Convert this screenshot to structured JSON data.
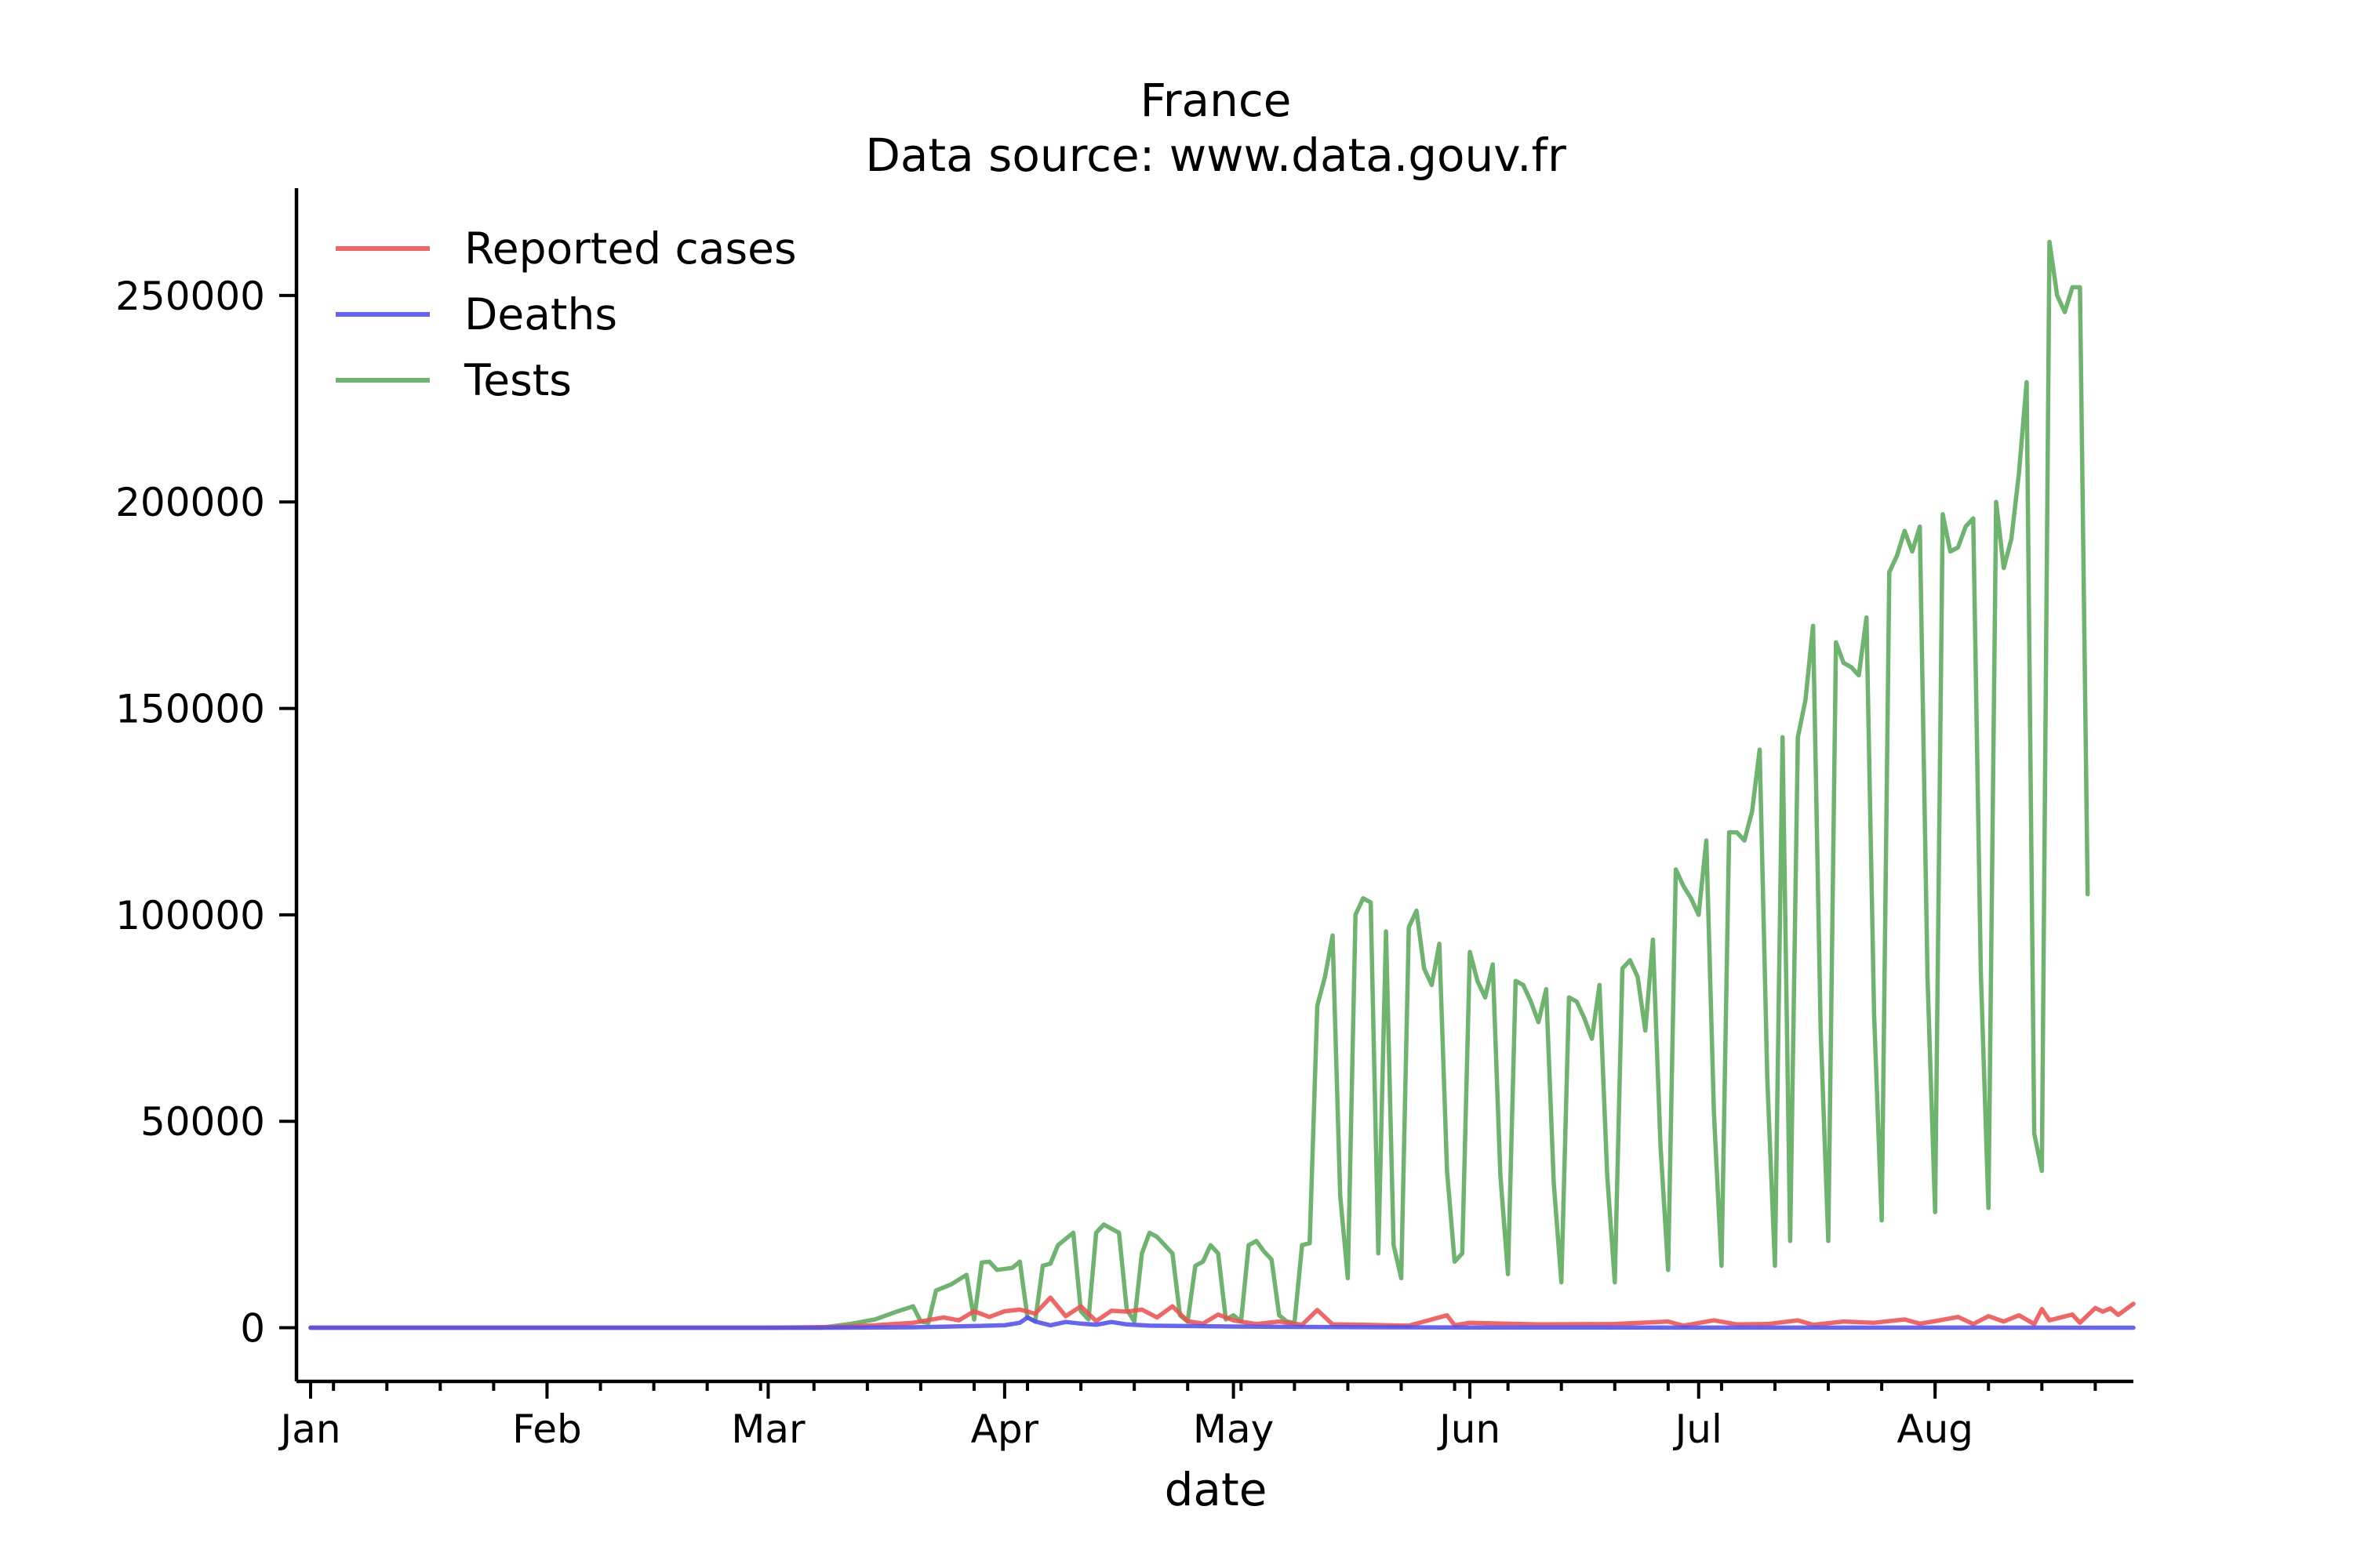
{
  "chart_data": {
    "type": "line",
    "title": "France",
    "subtitle": "Data source: www.data.gouv.fr",
    "xlabel": "date",
    "ylabel": "",
    "x_range": [
      "2020-01-01",
      "2020-08-27"
    ],
    "ylim": [
      -13000,
      276000
    ],
    "yticks": [
      0,
      50000,
      100000,
      150000,
      200000,
      250000
    ],
    "xticks": [
      {
        "date": "2020-01-01",
        "label": "Jan"
      },
      {
        "date": "2020-02-01",
        "label": "Feb"
      },
      {
        "date": "2020-03-01",
        "label": "Mar"
      },
      {
        "date": "2020-04-01",
        "label": "Apr"
      },
      {
        "date": "2020-05-01",
        "label": "May"
      },
      {
        "date": "2020-06-01",
        "label": "Jun"
      },
      {
        "date": "2020-07-01",
        "label": "Jul"
      },
      {
        "date": "2020-08-01",
        "label": "Aug"
      }
    ],
    "legend_position": "top-left",
    "grid": false,
    "series": [
      {
        "name": "Reported cases",
        "color": "#f05050",
        "points": [
          [
            "2020-01-01",
            0
          ],
          [
            "2020-03-01",
            0
          ],
          [
            "2020-03-10",
            200
          ],
          [
            "2020-03-15",
            600
          ],
          [
            "2020-03-20",
            1200
          ],
          [
            "2020-03-24",
            2500
          ],
          [
            "2020-03-26",
            1800
          ],
          [
            "2020-03-28",
            4000
          ],
          [
            "2020-03-30",
            2600
          ],
          [
            "2020-04-01",
            4000
          ],
          [
            "2020-04-03",
            4400
          ],
          [
            "2020-04-05",
            3400
          ],
          [
            "2020-04-07",
            7300
          ],
          [
            "2020-04-09",
            2800
          ],
          [
            "2020-04-11",
            5200
          ],
          [
            "2020-04-13",
            1600
          ],
          [
            "2020-04-15",
            4100
          ],
          [
            "2020-04-17",
            3900
          ],
          [
            "2020-04-19",
            4400
          ],
          [
            "2020-04-21",
            2500
          ],
          [
            "2020-04-23",
            5200
          ],
          [
            "2020-04-25",
            1600
          ],
          [
            "2020-04-27",
            1000
          ],
          [
            "2020-04-29",
            3200
          ],
          [
            "2020-05-01",
            1800
          ],
          [
            "2020-05-04",
            900
          ],
          [
            "2020-05-07",
            1500
          ],
          [
            "2020-05-10",
            700
          ],
          [
            "2020-05-12",
            4300
          ],
          [
            "2020-05-14",
            800
          ],
          [
            "2020-05-18",
            700
          ],
          [
            "2020-05-24",
            500
          ],
          [
            "2020-05-29",
            3000
          ],
          [
            "2020-05-30",
            600
          ],
          [
            "2020-06-01",
            1200
          ],
          [
            "2020-06-10",
            800
          ],
          [
            "2020-06-20",
            900
          ],
          [
            "2020-06-27",
            1500
          ],
          [
            "2020-06-29",
            500
          ],
          [
            "2020-07-03",
            1800
          ],
          [
            "2020-07-06",
            800
          ],
          [
            "2020-07-10",
            900
          ],
          [
            "2020-07-14",
            1800
          ],
          [
            "2020-07-16",
            700
          ],
          [
            "2020-07-20",
            1500
          ],
          [
            "2020-07-24",
            1200
          ],
          [
            "2020-07-28",
            2000
          ],
          [
            "2020-07-30",
            1000
          ],
          [
            "2020-08-01",
            1600
          ],
          [
            "2020-08-04",
            2600
          ],
          [
            "2020-08-06",
            900
          ],
          [
            "2020-08-08",
            2800
          ],
          [
            "2020-08-10",
            1500
          ],
          [
            "2020-08-12",
            3000
          ],
          [
            "2020-08-14",
            900
          ],
          [
            "2020-08-15",
            4500
          ],
          [
            "2020-08-16",
            1800
          ],
          [
            "2020-08-19",
            3200
          ],
          [
            "2020-08-20",
            1200
          ],
          [
            "2020-08-22",
            4800
          ],
          [
            "2020-08-23",
            3900
          ],
          [
            "2020-08-24",
            4700
          ],
          [
            "2020-08-25",
            3100
          ],
          [
            "2020-08-27",
            5800
          ]
        ]
      },
      {
        "name": "Deaths",
        "color": "#5050f0",
        "points": [
          [
            "2020-01-01",
            0
          ],
          [
            "2020-03-10",
            0
          ],
          [
            "2020-03-20",
            100
          ],
          [
            "2020-03-28",
            400
          ],
          [
            "2020-04-01",
            600
          ],
          [
            "2020-04-03",
            1200
          ],
          [
            "2020-04-04",
            2500
          ],
          [
            "2020-04-05",
            1500
          ],
          [
            "2020-04-07",
            600
          ],
          [
            "2020-04-09",
            1400
          ],
          [
            "2020-04-11",
            1000
          ],
          [
            "2020-04-13",
            700
          ],
          [
            "2020-04-15",
            1400
          ],
          [
            "2020-04-17",
            800
          ],
          [
            "2020-04-20",
            500
          ],
          [
            "2020-04-25",
            400
          ],
          [
            "2020-05-01",
            300
          ],
          [
            "2020-05-10",
            200
          ],
          [
            "2020-05-20",
            100
          ],
          [
            "2020-06-01",
            60
          ],
          [
            "2020-07-01",
            30
          ],
          [
            "2020-08-01",
            20
          ],
          [
            "2020-08-27",
            10
          ]
        ]
      },
      {
        "name": "Tests",
        "color": "#5aa85a",
        "points": [
          [
            "2020-01-01",
            0
          ],
          [
            "2020-03-08",
            0
          ],
          [
            "2020-03-12",
            1000
          ],
          [
            "2020-03-15",
            2000
          ],
          [
            "2020-03-18",
            4000
          ],
          [
            "2020-03-20",
            5200
          ],
          [
            "2020-03-21",
            1500
          ],
          [
            "2020-03-22",
            1200
          ],
          [
            "2020-03-23",
            9000
          ],
          [
            "2020-03-25",
            10500
          ],
          [
            "2020-03-27",
            12800
          ],
          [
            "2020-03-28",
            2000
          ],
          [
            "2020-03-29",
            15800
          ],
          [
            "2020-03-30",
            16000
          ],
          [
            "2020-03-31",
            14000
          ],
          [
            "2020-04-02",
            14500
          ],
          [
            "2020-04-03",
            16000
          ],
          [
            "2020-04-04",
            2500
          ],
          [
            "2020-04-05",
            1500
          ],
          [
            "2020-04-06",
            15000
          ],
          [
            "2020-04-07",
            15500
          ],
          [
            "2020-04-08",
            20000
          ],
          [
            "2020-04-10",
            23000
          ],
          [
            "2020-04-11",
            4000
          ],
          [
            "2020-04-12",
            2000
          ],
          [
            "2020-04-13",
            23000
          ],
          [
            "2020-04-14",
            25000
          ],
          [
            "2020-04-16",
            23000
          ],
          [
            "2020-04-17",
            4500
          ],
          [
            "2020-04-18",
            1500
          ],
          [
            "2020-04-19",
            18000
          ],
          [
            "2020-04-20",
            23000
          ],
          [
            "2020-04-21",
            22000
          ],
          [
            "2020-04-23",
            18000
          ],
          [
            "2020-04-24",
            3000
          ],
          [
            "2020-04-25",
            1500
          ],
          [
            "2020-04-26",
            15000
          ],
          [
            "2020-04-27",
            16000
          ],
          [
            "2020-04-28",
            20000
          ],
          [
            "2020-04-29",
            18000
          ],
          [
            "2020-04-30",
            2000
          ],
          [
            "2020-05-01",
            3000
          ],
          [
            "2020-05-02",
            1500
          ],
          [
            "2020-05-03",
            20000
          ],
          [
            "2020-05-04",
            21000
          ],
          [
            "2020-05-05",
            18500
          ],
          [
            "2020-05-06",
            16500
          ],
          [
            "2020-05-07",
            3000
          ],
          [
            "2020-05-08",
            1500
          ],
          [
            "2020-05-09",
            1200
          ],
          [
            "2020-05-10",
            20000
          ],
          [
            "2020-05-11",
            20500
          ],
          [
            "2020-05-12",
            78000
          ],
          [
            "2020-05-13",
            85000
          ],
          [
            "2020-05-14",
            95000
          ],
          [
            "2020-05-15",
            32000
          ],
          [
            "2020-05-16",
            12000
          ],
          [
            "2020-05-17",
            100000
          ],
          [
            "2020-05-18",
            104000
          ],
          [
            "2020-05-19",
            103000
          ],
          [
            "2020-05-20",
            18000
          ],
          [
            "2020-05-21",
            96000
          ],
          [
            "2020-05-22",
            20000
          ],
          [
            "2020-05-23",
            12000
          ],
          [
            "2020-05-24",
            97000
          ],
          [
            "2020-05-25",
            101000
          ],
          [
            "2020-05-26",
            87000
          ],
          [
            "2020-05-27",
            83000
          ],
          [
            "2020-05-28",
            93000
          ],
          [
            "2020-05-29",
            38000
          ],
          [
            "2020-05-30",
            16000
          ],
          [
            "2020-05-31",
            18000
          ],
          [
            "2020-06-01",
            91000
          ],
          [
            "2020-06-02",
            84000
          ],
          [
            "2020-06-03",
            80000
          ],
          [
            "2020-06-04",
            88000
          ],
          [
            "2020-06-05",
            37000
          ],
          [
            "2020-06-06",
            13000
          ],
          [
            "2020-06-07",
            84000
          ],
          [
            "2020-06-08",
            83000
          ],
          [
            "2020-06-09",
            79000
          ],
          [
            "2020-06-10",
            74000
          ],
          [
            "2020-06-11",
            82000
          ],
          [
            "2020-06-12",
            35000
          ],
          [
            "2020-06-13",
            11000
          ],
          [
            "2020-06-14",
            80000
          ],
          [
            "2020-06-15",
            79000
          ],
          [
            "2020-06-16",
            75000
          ],
          [
            "2020-06-17",
            70000
          ],
          [
            "2020-06-18",
            83000
          ],
          [
            "2020-06-19",
            37000
          ],
          [
            "2020-06-20",
            11000
          ],
          [
            "2020-06-21",
            87000
          ],
          [
            "2020-06-22",
            89000
          ],
          [
            "2020-06-23",
            85000
          ],
          [
            "2020-06-24",
            72000
          ],
          [
            "2020-06-25",
            94000
          ],
          [
            "2020-06-26",
            44000
          ],
          [
            "2020-06-27",
            14000
          ],
          [
            "2020-06-28",
            111000
          ],
          [
            "2020-06-29",
            107000
          ],
          [
            "2020-06-30",
            104000
          ],
          [
            "2020-07-01",
            100000
          ],
          [
            "2020-07-02",
            118000
          ],
          [
            "2020-07-03",
            52000
          ],
          [
            "2020-07-04",
            15000
          ],
          [
            "2020-07-05",
            120000
          ],
          [
            "2020-07-06",
            120000
          ],
          [
            "2020-07-07",
            118000
          ],
          [
            "2020-07-08",
            125000
          ],
          [
            "2020-07-09",
            140000
          ],
          [
            "2020-07-10",
            60000
          ],
          [
            "2020-07-11",
            15000
          ],
          [
            "2020-07-12",
            143000
          ],
          [
            "2020-07-13",
            21000
          ],
          [
            "2020-07-14",
            143000
          ],
          [
            "2020-07-15",
            152000
          ],
          [
            "2020-07-16",
            170000
          ],
          [
            "2020-07-17",
            72000
          ],
          [
            "2020-07-18",
            21000
          ],
          [
            "2020-07-19",
            166000
          ],
          [
            "2020-07-20",
            161000
          ],
          [
            "2020-07-21",
            160000
          ],
          [
            "2020-07-22",
            158000
          ],
          [
            "2020-07-23",
            172000
          ],
          [
            "2020-07-24",
            76000
          ],
          [
            "2020-07-25",
            26000
          ],
          [
            "2020-07-26",
            183000
          ],
          [
            "2020-07-27",
            187000
          ],
          [
            "2020-07-28",
            193000
          ],
          [
            "2020-07-29",
            188000
          ],
          [
            "2020-07-30",
            194000
          ],
          [
            "2020-07-31",
            85000
          ],
          [
            "2020-08-01",
            28000
          ],
          [
            "2020-08-02",
            197000
          ],
          [
            "2020-08-03",
            188000
          ],
          [
            "2020-08-04",
            189000
          ],
          [
            "2020-08-05",
            194000
          ],
          [
            "2020-08-06",
            196000
          ],
          [
            "2020-08-07",
            86000
          ],
          [
            "2020-08-08",
            29000
          ],
          [
            "2020-08-09",
            200000
          ],
          [
            "2020-08-10",
            184000
          ],
          [
            "2020-08-11",
            191000
          ],
          [
            "2020-08-12",
            207000
          ],
          [
            "2020-08-13",
            229000
          ],
          [
            "2020-08-14",
            47000
          ],
          [
            "2020-08-15",
            38000
          ],
          [
            "2020-08-16",
            263000
          ],
          [
            "2020-08-17",
            250000
          ],
          [
            "2020-08-18",
            246000
          ],
          [
            "2020-08-19",
            252000
          ],
          [
            "2020-08-20",
            252000
          ],
          [
            "2020-08-21",
            105000
          ]
        ]
      }
    ]
  }
}
